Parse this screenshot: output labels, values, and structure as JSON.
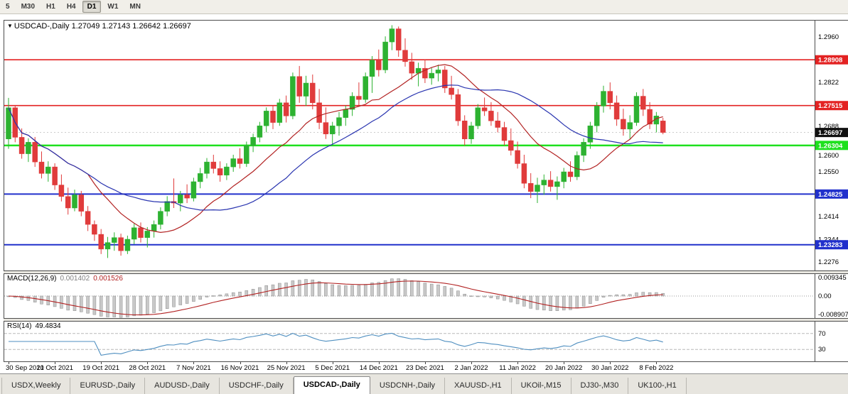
{
  "toolbar": {
    "timeframes": [
      {
        "label": "5",
        "active": false
      },
      {
        "label": "M30",
        "active": false
      },
      {
        "label": "H1",
        "active": false
      },
      {
        "label": "H4",
        "active": false
      },
      {
        "label": "D1",
        "active": true
      },
      {
        "label": "W1",
        "active": false
      },
      {
        "label": "MN",
        "active": false
      }
    ]
  },
  "chart": {
    "title_arrow": "▼",
    "symbol_label": "USDCAD-,Daily",
    "quote_open": "1.27049",
    "quote_high": "1.27143",
    "quote_low": "1.26642",
    "quote_close": "1.26697"
  },
  "indicators": {
    "macd_label": "MACD(12,26,9)",
    "macd_value_main": "0.001402",
    "macd_value_signal": "0.001526",
    "rsi_label": "RSI(14)",
    "rsi_value": "49.4834"
  },
  "chart_data": {
    "type": "candlestick",
    "symbol": "USDCAD-",
    "timeframe": "Daily",
    "price_range": [
      1.225,
      1.301
    ],
    "colors": {
      "bull": "#2db231",
      "bear": "#e03b3b",
      "ma_fast": "#b22222",
      "ma_slow": "#2a35b0",
      "macd_hist": "#c9c9c9",
      "macd_hist_border": "#8c8c8c",
      "macd_signal": "#b22222",
      "rsi": "#4f8fc0"
    },
    "ma_periods": {
      "fast": 13,
      "slow": 26
    },
    "candles": [
      [
        1.265,
        1.2775,
        1.262,
        1.2745
      ],
      [
        1.2745,
        1.2752,
        1.264,
        1.2655
      ],
      [
        1.2655,
        1.2682,
        1.259,
        1.2605
      ],
      [
        1.2605,
        1.2652,
        1.258,
        1.264
      ],
      [
        1.264,
        1.2656,
        1.2565,
        1.258
      ],
      [
        1.258,
        1.2612,
        1.253,
        1.2545
      ],
      [
        1.2545,
        1.2582,
        1.252,
        1.2565
      ],
      [
        1.2565,
        1.2576,
        1.2495,
        1.251
      ],
      [
        1.251,
        1.2542,
        1.246,
        1.2475
      ],
      [
        1.2475,
        1.2502,
        1.242,
        1.244
      ],
      [
        1.244,
        1.2496,
        1.243,
        1.248
      ],
      [
        1.248,
        1.2492,
        1.2415,
        1.243
      ],
      [
        1.243,
        1.2446,
        1.237,
        1.239
      ],
      [
        1.239,
        1.2402,
        1.234,
        1.236
      ],
      [
        1.236,
        1.2376,
        1.23,
        1.2315
      ],
      [
        1.2315,
        1.2352,
        1.2288,
        1.2335
      ],
      [
        1.2335,
        1.2366,
        1.231,
        1.235
      ],
      [
        1.235,
        1.2362,
        1.2295,
        1.231
      ],
      [
        1.231,
        1.2356,
        1.23,
        1.2345
      ],
      [
        1.2345,
        1.2392,
        1.233,
        1.238
      ],
      [
        1.238,
        1.2396,
        1.2335,
        1.235
      ],
      [
        1.235,
        1.2382,
        1.232,
        1.237
      ],
      [
        1.237,
        1.2402,
        1.235,
        1.239
      ],
      [
        1.239,
        1.2442,
        1.2375,
        1.243
      ],
      [
        1.243,
        1.2476,
        1.2415,
        1.246
      ],
      [
        1.246,
        1.253,
        1.244,
        1.2455
      ],
      [
        1.2455,
        1.2492,
        1.243,
        1.248
      ],
      [
        1.248,
        1.2512,
        1.2455,
        1.247
      ],
      [
        1.247,
        1.2532,
        1.246,
        1.252
      ],
      [
        1.252,
        1.2562,
        1.25,
        1.2545
      ],
      [
        1.2545,
        1.2592,
        1.253,
        1.258
      ],
      [
        1.258,
        1.2602,
        1.2545,
        1.256
      ],
      [
        1.256,
        1.2582,
        1.252,
        1.254
      ],
      [
        1.254,
        1.2576,
        1.2525,
        1.2565
      ],
      [
        1.2565,
        1.2602,
        1.255,
        1.259
      ],
      [
        1.259,
        1.2622,
        1.256,
        1.2575
      ],
      [
        1.2575,
        1.2642,
        1.2565,
        1.263
      ],
      [
        1.263,
        1.2666,
        1.261,
        1.2655
      ],
      [
        1.2655,
        1.2702,
        1.264,
        1.269
      ],
      [
        1.269,
        1.2746,
        1.267,
        1.2735
      ],
      [
        1.2735,
        1.2752,
        1.268,
        1.27
      ],
      [
        1.27,
        1.2772,
        1.269,
        1.276
      ],
      [
        1.276,
        1.2782,
        1.27,
        1.272
      ],
      [
        1.272,
        1.2852,
        1.271,
        1.284
      ],
      [
        1.284,
        1.2872,
        1.276,
        1.278
      ],
      [
        1.278,
        1.2842,
        1.275,
        1.282
      ],
      [
        1.282,
        1.2846,
        1.274,
        1.276
      ],
      [
        1.276,
        1.2802,
        1.268,
        1.27
      ],
      [
        1.27,
        1.2746,
        1.265,
        1.2665
      ],
      [
        1.2665,
        1.2702,
        1.263,
        1.269
      ],
      [
        1.269,
        1.2732,
        1.266,
        1.2715
      ],
      [
        1.2715,
        1.2752,
        1.269,
        1.274
      ],
      [
        1.274,
        1.2792,
        1.272,
        1.278
      ],
      [
        1.278,
        1.2822,
        1.275,
        1.277
      ],
      [
        1.277,
        1.2852,
        1.276,
        1.284
      ],
      [
        1.284,
        1.2902,
        1.279,
        1.289
      ],
      [
        1.289,
        1.2922,
        1.284,
        1.286
      ],
      [
        1.286,
        1.2962,
        1.285,
        1.2945
      ],
      [
        1.2945,
        1.2996,
        1.292,
        1.2985
      ],
      [
        1.2985,
        1.2992,
        1.29,
        1.292
      ],
      [
        1.292,
        1.2956,
        1.287,
        1.2885
      ],
      [
        1.2885,
        1.2912,
        1.283,
        1.285
      ],
      [
        1.285,
        1.2882,
        1.281,
        1.2865
      ],
      [
        1.2865,
        1.2892,
        1.282,
        1.2835
      ],
      [
        1.2835,
        1.2866,
        1.2815,
        1.285
      ],
      [
        1.285,
        1.2876,
        1.2825,
        1.286
      ],
      [
        1.286,
        1.2872,
        1.279,
        1.2805
      ],
      [
        1.2805,
        1.2842,
        1.277,
        1.2785
      ],
      [
        1.2785,
        1.2802,
        1.269,
        1.2705
      ],
      [
        1.2705,
        1.2722,
        1.263,
        1.265
      ],
      [
        1.265,
        1.2702,
        1.2635,
        1.269
      ],
      [
        1.269,
        1.2756,
        1.268,
        1.2745
      ],
      [
        1.2745,
        1.2776,
        1.272,
        1.2735
      ],
      [
        1.2735,
        1.2762,
        1.269,
        1.2705
      ],
      [
        1.2705,
        1.2732,
        1.267,
        1.2685
      ],
      [
        1.2685,
        1.2702,
        1.263,
        1.2645
      ],
      [
        1.2645,
        1.2682,
        1.26,
        1.2615
      ],
      [
        1.2615,
        1.2642,
        1.256,
        1.2575
      ],
      [
        1.2575,
        1.2602,
        1.25,
        1.2515
      ],
      [
        1.2515,
        1.2546,
        1.247,
        1.249
      ],
      [
        1.249,
        1.2532,
        1.2455,
        1.251
      ],
      [
        1.251,
        1.2542,
        1.248,
        1.2525
      ],
      [
        1.2525,
        1.2552,
        1.249,
        1.2505
      ],
      [
        1.2505,
        1.2536,
        1.2465,
        1.252
      ],
      [
        1.252,
        1.2562,
        1.25,
        1.255
      ],
      [
        1.255,
        1.2582,
        1.252,
        1.2535
      ],
      [
        1.2535,
        1.2612,
        1.2525,
        1.26
      ],
      [
        1.26,
        1.2652,
        1.258,
        1.264
      ],
      [
        1.264,
        1.2702,
        1.262,
        1.269
      ],
      [
        1.269,
        1.2762,
        1.267,
        1.275
      ],
      [
        1.275,
        1.2812,
        1.273,
        1.2795
      ],
      [
        1.2795,
        1.2822,
        1.274,
        1.276
      ],
      [
        1.276,
        1.2782,
        1.269,
        1.271
      ],
      [
        1.271,
        1.2742,
        1.266,
        1.268
      ],
      [
        1.268,
        1.2722,
        1.265,
        1.27
      ],
      [
        1.27,
        1.2792,
        1.269,
        1.278
      ],
      [
        1.278,
        1.2802,
        1.272,
        1.274
      ],
      [
        1.274,
        1.2762,
        1.268,
        1.2695
      ],
      [
        1.2695,
        1.2732,
        1.267,
        1.272
      ],
      [
        1.27049,
        1.27143,
        1.26642,
        1.26697
      ]
    ],
    "x_labels": [
      {
        "i": 0,
        "label": "30 Sep 2021"
      },
      {
        "i": 7,
        "label": "10 Oct 2021"
      },
      {
        "i": 14,
        "label": "19 Oct 2021"
      },
      {
        "i": 21,
        "label": "28 Oct 2021"
      },
      {
        "i": 28,
        "label": "7 Nov 2021"
      },
      {
        "i": 35,
        "label": "16 Nov 2021"
      },
      {
        "i": 42,
        "label": "25 Nov 2021"
      },
      {
        "i": 49,
        "label": "5 Dec 2021"
      },
      {
        "i": 56,
        "label": "14 Dec 2021"
      },
      {
        "i": 63,
        "label": "23 Dec 2021"
      },
      {
        "i": 70,
        "label": "2 Jan 2022"
      },
      {
        "i": 77,
        "label": "11 Jan 2022"
      },
      {
        "i": 84,
        "label": "20 Jan 2022"
      },
      {
        "i": 91,
        "label": "30 Jan 2022"
      },
      {
        "i": 98,
        "label": "8 Feb 2022"
      }
    ],
    "y_ticks": [
      {
        "price": 1.296,
        "label": "1.2960"
      },
      {
        "price": 1.2822,
        "label": "1.2822"
      },
      {
        "price": 1.2688,
        "label": "1.2688"
      },
      {
        "price": 1.26,
        "label": "1.2600"
      },
      {
        "price": 1.255,
        "label": "1.2550"
      },
      {
        "price": 1.2414,
        "label": "1.2414"
      },
      {
        "price": 1.2344,
        "label": "1.2344"
      },
      {
        "price": 1.2276,
        "label": "1.2276"
      }
    ],
    "h_lines": [
      {
        "price": 1.28908,
        "label": "1.28908",
        "color": "#e32222",
        "width": 1.6
      },
      {
        "price": 1.27515,
        "label": "1.27515",
        "color": "#e32222",
        "width": 1.6
      },
      {
        "price": 1.26304,
        "label": "1.26304",
        "color": "#1ee01e",
        "width": 2.5
      },
      {
        "price": 1.24825,
        "label": "1.24825",
        "color": "#2130cc",
        "width": 2
      },
      {
        "price": 1.23283,
        "label": "1.23283",
        "color": "#2130cc",
        "width": 2
      }
    ],
    "current_price": {
      "value": 1.26697,
      "label": "1.26697",
      "badge_color": "#101010"
    },
    "macd": {
      "params": [
        12,
        26,
        9
      ],
      "plot_range": [
        -0.0105,
        0.0105
      ],
      "axis_labels": [
        {
          "value": 0.009345,
          "label": "0.009345"
        },
        {
          "value": 0,
          "label": "0.00"
        },
        {
          "value": -0.008907,
          "label": "-0.008907"
        }
      ]
    },
    "rsi": {
      "period": 14,
      "levels": [
        70,
        30
      ],
      "plot_range": [
        0,
        100
      ],
      "axis_labels": [
        {
          "value": 70,
          "label": "70"
        },
        {
          "value": 30,
          "label": "30"
        }
      ]
    }
  },
  "tabs": [
    {
      "label": "USDX,Weekly",
      "active": false
    },
    {
      "label": "EURUSD-,Daily",
      "active": false
    },
    {
      "label": "AUDUSD-,Daily",
      "active": false
    },
    {
      "label": "USDCHF-,Daily",
      "active": false
    },
    {
      "label": "USDCAD-,Daily",
      "active": true
    },
    {
      "label": "USDCNH-,Daily",
      "active": false
    },
    {
      "label": "XAUUSD-,H1",
      "active": false
    },
    {
      "label": "UKOil-,M15",
      "active": false
    },
    {
      "label": "DJ30-,M30",
      "active": false
    },
    {
      "label": "UK100-,H1",
      "active": false
    }
  ]
}
